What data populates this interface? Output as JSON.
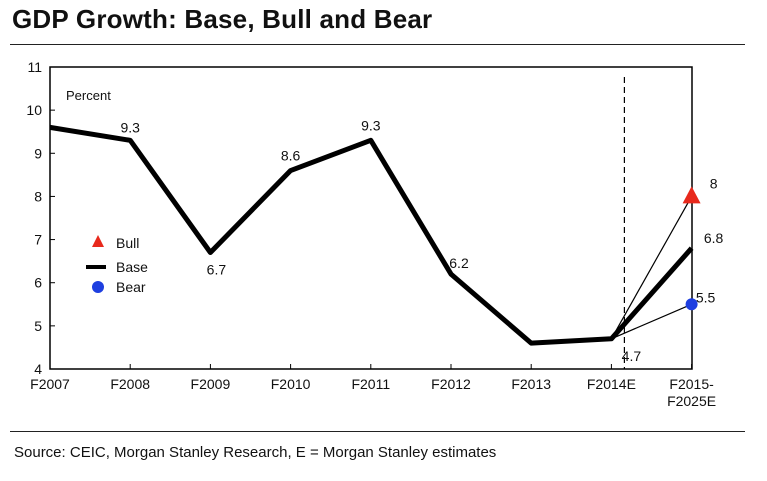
{
  "title": "GDP Growth: Base, Bull and Bear",
  "source": "Source: CEIC, Morgan Stanley Research, E = Morgan Stanley estimates",
  "chart_data": {
    "type": "line",
    "ylabel": "Percent",
    "ylim": [
      4,
      11
    ],
    "yticks": [
      4,
      5,
      6,
      7,
      8,
      9,
      10,
      11
    ],
    "categories": [
      "F2007",
      "F2008",
      "F2009",
      "F2010",
      "F2011",
      "F2012",
      "F2013",
      "F2014E",
      "F2015-F2025E"
    ],
    "category_lines": [
      [
        "F2007"
      ],
      [
        "F2008"
      ],
      [
        "F2009"
      ],
      [
        "F2010"
      ],
      [
        "F2011"
      ],
      [
        "F2012"
      ],
      [
        "F2013"
      ],
      [
        "F2014E"
      ],
      [
        "F2015-",
        "F2025E"
      ]
    ],
    "series": [
      {
        "name": "Base",
        "color": "#000000",
        "values": [
          9.6,
          9.3,
          6.7,
          8.6,
          9.3,
          6.2,
          4.6,
          4.7,
          6.8
        ],
        "labels": [
          "",
          "9.3",
          "6.7",
          "8.6",
          "9.3",
          "6.2",
          "",
          "4.7",
          "6.8"
        ]
      },
      {
        "name": "Bull",
        "color": "#e8291c",
        "marker": "triangle",
        "from": {
          "category": "F2014E",
          "value": 4.7
        },
        "to": {
          "category": "F2015-F2025E",
          "value": 8
        },
        "label": "8"
      },
      {
        "name": "Bear",
        "color": "#1e3fe0",
        "marker": "circle",
        "from": {
          "category": "F2014E",
          "value": 4.7
        },
        "to": {
          "category": "F2015-F2025E",
          "value": 5.5
        },
        "label": "5.5"
      }
    ],
    "forecast_divider": "F2014E",
    "legend": [
      "Bull",
      "Base",
      "Bear"
    ],
    "legend_position": "left",
    "grid": false
  }
}
